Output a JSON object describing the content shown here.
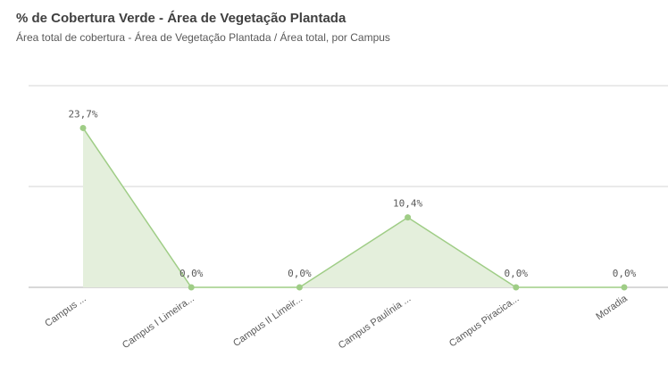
{
  "chart_data": {
    "type": "area",
    "title": "% de Cobertura Verde - Área de Vegetação Plantada",
    "subtitle": "Área total de cobertura - Área de Vegetação Plantada / Área total, por Campus",
    "categories": [
      "Campus ...",
      "Campus I Limeira...",
      "Campus II Limeir...",
      "Campus Paulínia ...",
      "Campus Piracica...",
      "Moradia"
    ],
    "values": [
      23.7,
      0,
      0,
      10.4,
      0,
      0
    ],
    "value_labels": [
      "23,7%",
      "0,0%",
      "0,0%",
      "10,4%",
      "0,0%",
      "0,0%"
    ],
    "color": "#9fcd86",
    "fill": "#e4efdc",
    "ylim": [
      0,
      30
    ],
    "yticks": [
      0,
      15,
      30
    ],
    "grid": true
  }
}
